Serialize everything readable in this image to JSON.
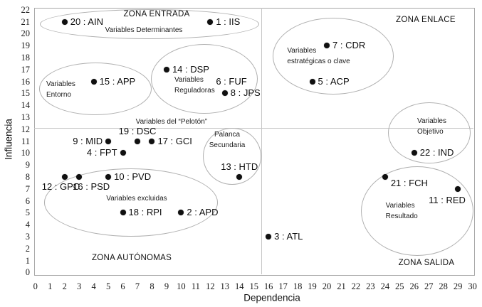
{
  "chart_data": {
    "type": "scatter",
    "title": "",
    "xlabel": "Dependencia",
    "ylabel": "Influencia",
    "xlim": [
      0,
      30
    ],
    "ylim": [
      0,
      22
    ],
    "x_tick_step": 1,
    "y_tick_step": 1,
    "grid": false,
    "quadrant_dividers": {
      "x": 15.5,
      "y": 12.1
    },
    "colors": {
      "dot": "#101010",
      "text": "#111111",
      "ellipse_stroke": "#b0b0b0",
      "axis_border": "#a8a8a8",
      "divider": "#c6c6c6"
    },
    "points": [
      {
        "num": 20,
        "code": "AIN",
        "label": "20 : AIN",
        "x": 2,
        "y": 21,
        "label_pos": "right",
        "dot_visible": true
      },
      {
        "num": 1,
        "code": "IIS",
        "label": "1 : IIS",
        "x": 12,
        "y": 21,
        "label_pos": "right",
        "dot_visible": true
      },
      {
        "num": 7,
        "code": "CDR",
        "label": "7 : CDR",
        "x": 20,
        "y": 19,
        "label_pos": "right",
        "dot_visible": true
      },
      {
        "num": 14,
        "code": "DSP",
        "label": "14 : DSP",
        "x": 9,
        "y": 17,
        "label_pos": "right",
        "dot_visible": true
      },
      {
        "num": 15,
        "code": "APP",
        "label": "15 : APP",
        "x": 4,
        "y": 16,
        "label_pos": "right",
        "dot_visible": true
      },
      {
        "num": 6,
        "code": "FUF",
        "label": "6 : FUF",
        "x": 12,
        "y": 16,
        "label_pos": "right",
        "dot_visible": false
      },
      {
        "num": 5,
        "code": "ACP",
        "label": "5 : ACP",
        "x": 19,
        "y": 16,
        "label_pos": "right",
        "dot_visible": true
      },
      {
        "num": 8,
        "code": "JPS",
        "label": "8 : JPS",
        "x": 13,
        "y": 15,
        "label_pos": "right",
        "dot_visible": true
      },
      {
        "num": 9,
        "code": "MID",
        "label": "9 : MID",
        "x": 5,
        "y": 11,
        "label_pos": "left",
        "dot_visible": true
      },
      {
        "num": 19,
        "code": "DSC",
        "label": "19 : DSC",
        "x": 7,
        "y": 11,
        "label_pos": "above",
        "dot_visible": true
      },
      {
        "num": 17,
        "code": "GCI",
        "label": "17 : GCI",
        "x": 8,
        "y": 11,
        "label_pos": "right",
        "dot_visible": true
      },
      {
        "num": 4,
        "code": "FPT",
        "label": "4 : FPT",
        "x": 6,
        "y": 10,
        "label_pos": "left",
        "dot_visible": true
      },
      {
        "num": 12,
        "code": "GPC",
        "label": "12 : GPC",
        "x": 2,
        "y": 8,
        "label_pos": "below-left",
        "dot_visible": true
      },
      {
        "num": 16,
        "code": "PSD",
        "label": "16 : PSD",
        "x": 3,
        "y": 8,
        "label_pos": "below-right",
        "dot_visible": true
      },
      {
        "num": 10,
        "code": "PVD",
        "label": "10 : PVD",
        "x": 5,
        "y": 8,
        "label_pos": "right",
        "dot_visible": true
      },
      {
        "num": 13,
        "code": "HTD",
        "label": "13 : HTD",
        "x": 14,
        "y": 8,
        "label_pos": "above",
        "dot_visible": true
      },
      {
        "num": 22,
        "code": "IND",
        "label": "22 : IND",
        "x": 26,
        "y": 10,
        "label_pos": "right",
        "dot_visible": true
      },
      {
        "num": 21,
        "code": "FCH",
        "label": "21 : FCH",
        "x": 24,
        "y": 8,
        "label_pos": "right-below",
        "dot_visible": true
      },
      {
        "num": 11,
        "code": "RED",
        "label": "11 : RED",
        "x": 29,
        "y": 7,
        "label_pos": "left-below",
        "dot_visible": true
      },
      {
        "num": 18,
        "code": "RPI",
        "label": "18 : RPI",
        "x": 6,
        "y": 5,
        "label_pos": "right",
        "dot_visible": true
      },
      {
        "num": 2,
        "code": "APD",
        "label": "2 : APD",
        "x": 10,
        "y": 5,
        "label_pos": "right",
        "dot_visible": true
      },
      {
        "num": 3,
        "code": "ATL",
        "label": "3 : ATL",
        "x": 16,
        "y": 3,
        "label_pos": "right",
        "dot_visible": true
      }
    ],
    "zones": [
      {
        "id": "entrada",
        "label": "ZONA ENTRADA",
        "x": 8.32,
        "y": 21.63
      },
      {
        "id": "enlace",
        "label": "ZONA ENLACE",
        "x": 26.79,
        "y": 21.15
      },
      {
        "id": "autonomas",
        "label": "ZONA AUTÓNOMAS",
        "x": 6.61,
        "y": 1.21
      },
      {
        "id": "salida",
        "label": "ZONA SALIDA",
        "x": 26.84,
        "y": 0.79
      }
    ],
    "groups": [
      {
        "id": "determinantes",
        "lines": [
          "Variables Determinantes"
        ],
        "align": "center",
        "text_x": 7.44,
        "text_y": 20.27,
        "ellipse": {
          "cx": 7.83,
          "cy": 20.79,
          "rx": 7.53,
          "ry": 1.25
        }
      },
      {
        "id": "entorno",
        "lines": [
          "Variables",
          "Entorno"
        ],
        "align": "left",
        "text_x": 0.74,
        "text_y": 15.79,
        "ellipse": {
          "cx": 4.12,
          "cy": 15.38,
          "rx": 3.86,
          "ry": 2.2
        }
      },
      {
        "id": "reguladoras",
        "lines": [
          "Variables",
          "Reguladoras"
        ],
        "align": "left",
        "text_x": 9.54,
        "text_y": 16.09,
        "ellipse": {
          "cx": 11.59,
          "cy": 16.21,
          "rx": 3.67,
          "ry": 2.92
        }
      },
      {
        "id": "estrategicas",
        "lines": [
          "Variables",
          "estratégicas o clave"
        ],
        "align": "left",
        "text_x": 17.28,
        "text_y": 18.55,
        "ellipse": {
          "cx": 20.44,
          "cy": 18.11,
          "rx": 4.15,
          "ry": 3.21
        }
      },
      {
        "id": "peloton",
        "lines": [
          "Variables del “Pelotón”"
        ],
        "align": "center",
        "text_x": 9.34,
        "text_y": 12.59,
        "ellipse": null
      },
      {
        "id": "palanca",
        "lines": [
          "Palanca",
          "Secundaria"
        ],
        "align": "center",
        "text_x": 13.16,
        "text_y": 11.51,
        "ellipse": {
          "cx": 13.5,
          "cy": 9.72,
          "rx": 2.0,
          "ry": 2.38
        }
      },
      {
        "id": "excluidas",
        "lines": [
          "Variables excluidas"
        ],
        "align": "center",
        "text_x": 6.95,
        "text_y": 6.15,
        "ellipse": {
          "cx": 6.56,
          "cy": 5.85,
          "rx": 5.96,
          "ry": 2.86
        }
      },
      {
        "id": "objetivo",
        "lines": [
          "Variables",
          "Objetivo"
        ],
        "align": "left",
        "text_x": 26.21,
        "text_y": 12.65,
        "ellipse": {
          "cx": 27.04,
          "cy": 11.68,
          "rx": 2.83,
          "ry": 2.56
        }
      },
      {
        "id": "resultado",
        "lines": [
          "Variables",
          "Resultado"
        ],
        "align": "left",
        "text_x": 24.04,
        "text_y": 5.6,
        "ellipse": {
          "cx": 26.21,
          "cy": 5.14,
          "rx": 3.86,
          "ry": 3.75
        }
      }
    ]
  }
}
